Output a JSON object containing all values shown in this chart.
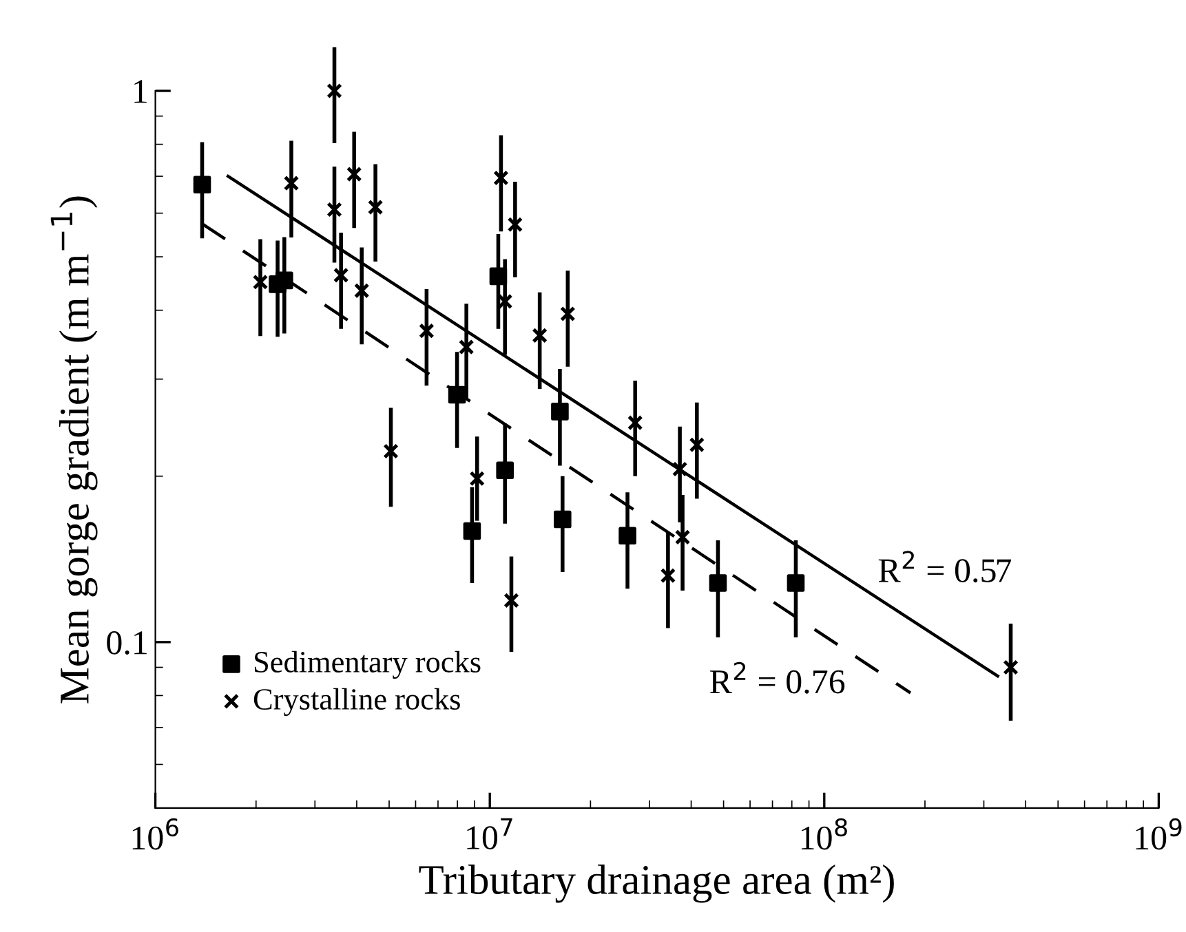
{
  "chart_data": {
    "type": "scatter",
    "xlabel": "Tributary drainage area (m²)",
    "ylabel": "Mean gorge gradient (m m$^{−1}$)",
    "log": "xy",
    "legend": "bottom left",
    "grid": false,
    "xlim": [
      1000000,
      1000000000
    ],
    "xticks": [
      {
        "value": 1000000,
        "label": "10$^{6}$"
      },
      {
        "value": 10000000,
        "label": "10$^{7}$"
      },
      {
        "value": 100000000,
        "label": "10$^{8}$"
      },
      {
        "value": 1000000000,
        "label": "10$^{9}$"
      }
    ],
    "ylim": [
      0.05,
      1
    ],
    "yticks": [
      0.1,
      1
    ],
    "series": [
      {
        "name": "Sedimentary rocks",
        "marker": "square",
        "color": "#000000",
        "x": [
          1380000,
          2320000,
          2430000,
          10600000,
          7980000,
          16200000,
          8850000,
          11100000,
          16500000,
          25800000,
          48100000,
          82200000
        ],
        "values": [
          0.676,
          0.446,
          0.453,
          0.461,
          0.281,
          0.262,
          0.159,
          0.205,
          0.167,
          0.156,
          0.128,
          0.128
        ],
        "errors": [
          [
            0.54,
            0.807
          ],
          [
            0.358,
            0.535
          ],
          [
            0.363,
            0.543
          ],
          [
            0.37,
            0.55
          ],
          [
            0.225,
            0.336
          ],
          [
            0.209,
            0.313
          ],
          [
            0.128,
            0.191
          ],
          [
            0.164,
            0.249
          ],
          [
            0.134,
            0.2
          ],
          [
            0.125,
            0.187
          ],
          [
            0.102,
            0.153
          ],
          [
            0.102,
            0.153
          ]
        ]
      },
      {
        "name": "Crystalline rocks",
        "marker": "cross",
        "color": "#000000",
        "x": [
          2060000,
          2550000,
          3430000,
          3430000,
          3930000,
          3590000,
          4140000,
          4550000,
          6470000,
          8510000,
          10800000,
          11100000,
          11900000,
          14100000,
          17100000,
          27200000,
          5060000,
          9160000,
          11600000,
          37000000,
          41600000,
          37700000,
          34100000,
          361000000
        ],
        "values": [
          0.45,
          0.68,
          1.0,
          0.609,
          0.706,
          0.463,
          0.434,
          0.615,
          0.367,
          0.343,
          0.695,
          0.415,
          0.572,
          0.36,
          0.394,
          0.25,
          0.222,
          0.198,
          0.119,
          0.206,
          0.228,
          0.155,
          0.132,
          0.09
        ],
        "errors": [
          [
            0.359,
            0.538
          ],
          [
            0.542,
            0.812
          ],
          [
            0.804,
            1.2
          ],
          [
            0.488,
            0.729
          ],
          [
            0.564,
            0.843
          ],
          [
            0.37,
            0.553
          ],
          [
            0.347,
            0.52
          ],
          [
            0.49,
            0.736
          ],
          [
            0.292,
            0.437
          ],
          [
            0.276,
            0.411
          ],
          [
            0.556,
            0.831
          ],
          [
            0.332,
            0.495
          ],
          [
            0.459,
            0.684
          ],
          [
            0.288,
            0.431
          ],
          [
            0.316,
            0.472
          ],
          [
            0.2,
            0.298
          ],
          [
            0.176,
            0.266
          ],
          [
            0.166,
            0.236
          ],
          [
            0.096,
            0.143
          ],
          [
            0.165,
            0.246
          ],
          [
            0.182,
            0.272
          ],
          [
            0.124,
            0.185
          ],
          [
            0.106,
            0.158
          ],
          [
            0.072,
            0.108
          ]
        ]
      },
      {
        "type": "line",
        "line_style": "solid",
        "color": "#000000",
        "x": [
          1650000,
          330000000
        ],
        "values": [
          0.7,
          0.0868
        ]
      },
      {
        "type": "line",
        "line_style": "dashed",
        "color": "#000000",
        "x": [
          1380000,
          181000000
        ],
        "values": [
          0.574,
          0.0809
        ]
      }
    ],
    "annotations": [
      "R$^{2}$ = 0.57",
      "R$^{2}$ = 0.76"
    ]
  }
}
